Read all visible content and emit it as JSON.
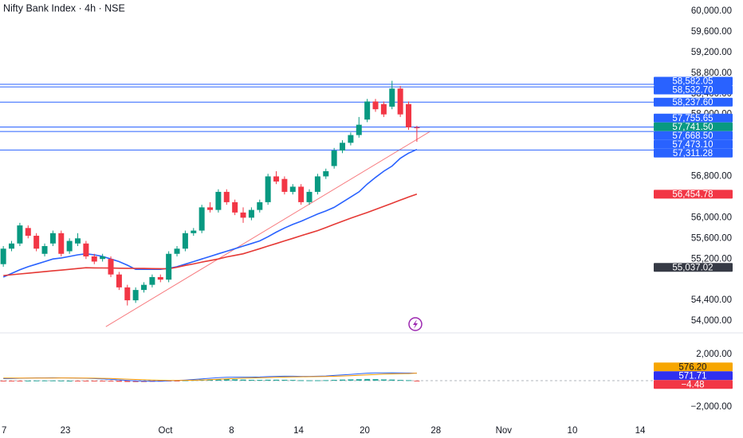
{
  "chart_data": [
    {
      "type": "candlestick",
      "title": "Nifty Bank Index · 4h · NSE",
      "xlim": [
        -0.4,
        79.6
      ],
      "xticks": [
        {
          "value": 0.1,
          "label": "7"
        },
        {
          "value": 7.5,
          "label": "23"
        },
        {
          "value": 19.6,
          "label": "Oct"
        },
        {
          "value": 27.6,
          "label": "8"
        },
        {
          "value": 35.7,
          "label": "14"
        },
        {
          "value": 43.7,
          "label": "20"
        },
        {
          "value": 52.3,
          "label": "28"
        },
        {
          "value": 60.5,
          "label": "Nov"
        },
        {
          "value": 68.8,
          "label": "10"
        },
        {
          "value": 77.0,
          "label": "14"
        }
      ],
      "ylim": [
        53800,
        60200
      ],
      "yticks": [
        {
          "value": 60000,
          "label": "60,000.00"
        },
        {
          "value": 59600,
          "label": "59,600.00"
        },
        {
          "value": 59200,
          "label": "59,200.00"
        },
        {
          "value": 58800,
          "label": "58,800.00"
        },
        {
          "value": 58400,
          "label": "58,400.00"
        },
        {
          "value": 58000,
          "label": "58,000.00"
        },
        {
          "value": 56800,
          "label": "56,800.00"
        },
        {
          "value": 56000,
          "label": "56,000.00"
        },
        {
          "value": 55600,
          "label": "55,600.00"
        },
        {
          "value": 55200,
          "label": "55,200.00"
        },
        {
          "value": 54400,
          "label": "54,400.00"
        },
        {
          "value": 54000,
          "label": "54,000.00"
        }
      ],
      "grid": false,
      "up_color": "#089981",
      "down_color": "#f23645",
      "x": [
        0,
        1,
        2,
        3,
        4,
        5,
        6,
        7,
        8,
        9,
        10,
        11,
        12,
        13,
        14,
        15,
        16,
        17,
        18,
        19,
        20,
        21,
        22,
        23,
        24,
        25,
        26,
        27,
        28,
        29,
        30,
        31,
        32,
        33,
        34,
        35,
        36,
        37,
        38,
        39,
        40,
        41,
        42,
        43,
        44,
        45,
        46,
        47,
        48,
        49,
        50
      ],
      "open": [
        55100,
        55400,
        55500,
        55800,
        55650,
        55300,
        55500,
        55700,
        55350,
        55500,
        55500,
        55250,
        55200,
        55200,
        54900,
        54650,
        54400,
        54600,
        54700,
        54850,
        54800,
        55300,
        55400,
        55700,
        55750,
        56200,
        56150,
        56500,
        56300,
        56100,
        56000,
        56150,
        56300,
        56800,
        56750,
        56500,
        56600,
        56300,
        56500,
        56800,
        57000,
        57300,
        57450,
        57600,
        57900,
        58250,
        58200,
        58150,
        58500,
        58200,
        57750
      ],
      "high": [
        55450,
        55550,
        55900,
        55850,
        55700,
        55500,
        55750,
        55750,
        55600,
        55700,
        55550,
        55300,
        55300,
        55250,
        54950,
        54700,
        54650,
        54750,
        54900,
        54900,
        55350,
        55450,
        55750,
        55800,
        56250,
        56300,
        56550,
        56550,
        56350,
        56200,
        56200,
        56350,
        56850,
        56900,
        56800,
        56650,
        56650,
        56550,
        56850,
        56950,
        57350,
        57500,
        57650,
        57950,
        58300,
        58300,
        58250,
        58650,
        58550,
        58250,
        57780
      ],
      "low": [
        55050,
        55350,
        55450,
        55600,
        55350,
        55250,
        55450,
        55250,
        55300,
        55450,
        55200,
        55100,
        55150,
        54850,
        54600,
        54300,
        54350,
        54550,
        54650,
        54750,
        54750,
        55250,
        55350,
        55650,
        55700,
        56100,
        56100,
        56250,
        56050,
        55900,
        55950,
        56100,
        56250,
        56650,
        56450,
        56450,
        56250,
        56250,
        56450,
        56750,
        56950,
        57250,
        57400,
        57550,
        57850,
        58050,
        57950,
        58100,
        57950,
        57700,
        57470
      ],
      "close": [
        55400,
        55500,
        55850,
        55650,
        55400,
        55450,
        55700,
        55300,
        55550,
        55600,
        55250,
        55150,
        55250,
        54900,
        54650,
        54400,
        54600,
        54700,
        54850,
        54800,
        55300,
        55400,
        55700,
        55750,
        56200,
        56150,
        56500,
        56300,
        56100,
        56000,
        56150,
        56300,
        56800,
        56700,
        56500,
        56600,
        56300,
        56500,
        56800,
        56900,
        57300,
        57450,
        57600,
        57800,
        58250,
        58100,
        58000,
        58500,
        58000,
        57750,
        57741.5
      ],
      "lines": [
        {
          "color": "#2962ff",
          "values": [
            54850,
            54920,
            54990,
            55050,
            55100,
            55150,
            55200,
            55220,
            55250,
            55280,
            55300,
            55280,
            55250,
            55200,
            55150,
            55080,
            55000,
            55000,
            55000,
            55000,
            55020,
            55050,
            55100,
            55150,
            55200,
            55250,
            55300,
            55350,
            55400,
            55450,
            55500,
            55550,
            55630,
            55720,
            55800,
            55870,
            55930,
            56000,
            56070,
            56130,
            56200,
            56300,
            56400,
            56500,
            56650,
            56780,
            56900,
            57000,
            57150,
            57250,
            57320
          ]
        },
        {
          "color": "#e53935",
          "values": [
            54880,
            54895,
            54910,
            54925,
            54940,
            54955,
            54970,
            54985,
            55000,
            55015,
            55030,
            55028,
            55026,
            55024,
            55022,
            55020,
            55018,
            55016,
            55014,
            55012,
            55010,
            55040,
            55075,
            55105,
            55140,
            55170,
            55200,
            55240,
            55270,
            55300,
            55350,
            55400,
            55450,
            55500,
            55550,
            55600,
            55650,
            55700,
            55750,
            55810,
            55870,
            55930,
            55990,
            56045,
            56100,
            56160,
            56220,
            56280,
            56340,
            56400,
            56455
          ]
        }
      ],
      "trendline": {
        "color": "#f77c80",
        "x": [
          12.4,
          51.6
        ],
        "y": [
          53890,
          57670
        ]
      },
      "price_labels": [
        {
          "value": 58582.05,
          "label": "58,582.05",
          "color": "#2962ff",
          "line": true
        },
        {
          "value": 58532.7,
          "label": "58,532.70",
          "color": "#2962ff",
          "line": true
        },
        {
          "value": 58237.6,
          "label": "58,237.60",
          "color": "#2962ff",
          "line": true
        },
        {
          "value": 57755.65,
          "label": "57,755.65",
          "color": "#2962ff",
          "line": true
        },
        {
          "value": 57741.5,
          "label": "57,741.50",
          "color": "#089981",
          "line": false
        },
        {
          "value": 57668.5,
          "label": "57,668.50",
          "color": "#2962ff",
          "line": true
        },
        {
          "value": 57473.1,
          "label": "57,473.10",
          "color": "#2962ff",
          "line": false
        },
        {
          "value": 57311.28,
          "label": "57,311.28",
          "color": "#2962ff",
          "line": true
        },
        {
          "value": 56454.78,
          "label": "56,454.78",
          "color": "#f23645",
          "line": false
        },
        {
          "value": 55037.02,
          "label": "55,037.02",
          "color": "#363a45",
          "line": false
        }
      ]
    },
    {
      "type": "macd",
      "ylim": [
        -3150,
        3515
      ],
      "yticks": [
        {
          "value": 2000,
          "label": "2,000.00"
        },
        {
          "value": -2000,
          "label": "−2,000.00"
        }
      ],
      "histogram": [
        -50,
        -35,
        -12,
        7,
        15,
        17,
        18,
        11,
        1,
        -8,
        -18,
        -30,
        -48,
        -62,
        -82,
        -98,
        -102,
        -98,
        -86,
        -69,
        -39,
        -7,
        27,
        53,
        83,
        98,
        119,
        119,
        103,
        82,
        65,
        60,
        72,
        74,
        67,
        54,
        35,
        28,
        30,
        40,
        64,
        83,
        99,
        111,
        129,
        119,
        95,
        84,
        59,
        39,
        -4.48
      ],
      "series": [
        {
          "color": "#2962ff",
          "values": [
            150,
            160,
            180,
            200,
            210,
            215,
            220,
            215,
            205,
            195,
            180,
            160,
            130,
            100,
            60,
            20,
            -10,
            -30,
            -40,
            -40,
            -20,
            10,
            50,
            90,
            140,
            180,
            230,
            260,
            270,
            270,
            270,
            280,
            310,
            330,
            340,
            340,
            330,
            330,
            340,
            360,
            400,
            440,
            480,
            520,
            570,
            590,
            590,
            600,
            590,
            580,
            571.71
          ]
        },
        {
          "color": "#ff9800",
          "values": [
            200,
            195,
            192,
            193,
            195,
            198,
            202,
            204,
            204,
            203,
            198,
            190,
            178,
            162,
            142,
            118,
            92,
            68,
            46,
            29,
            19,
            17,
            23,
            37,
            57,
            82,
            111,
            141,
            167,
            188,
            205,
            220,
            238,
            256,
            273,
            286,
            295,
            302,
            310,
            320,
            336,
            357,
            381,
            409,
            441,
            471,
            495,
            516,
            531,
            541,
            576.2
          ]
        }
      ],
      "price_labels": [
        {
          "value": 576.2,
          "label": "576.20",
          "color": "#f7a600"
        },
        {
          "value": 571.71,
          "label": "571.71",
          "color": "#3030f0"
        },
        {
          "value": -4.48,
          "label": "−4.48",
          "color": "#f23645"
        }
      ]
    }
  ]
}
